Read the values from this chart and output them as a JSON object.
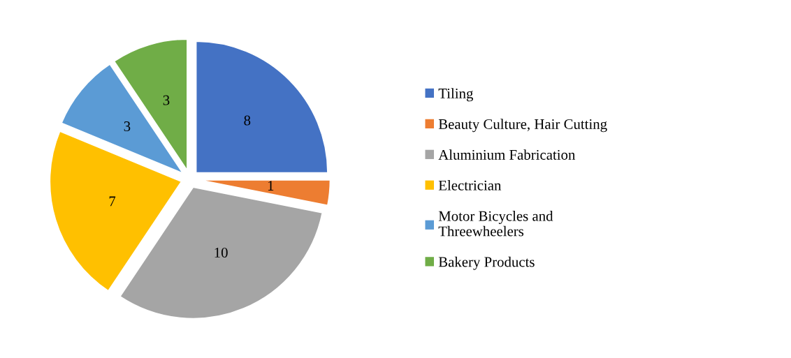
{
  "chart_data": {
    "type": "pie",
    "categories": [
      "Tiling",
      "Beauty Culture, Hair Cutting",
      "Aluminium Fabrication",
      "Electrician",
      "Motor Bicycles and\nThreewheelers",
      "Bakery Products"
    ],
    "values": [
      8,
      1,
      10,
      7,
      3,
      3
    ],
    "colors": [
      "#4472c4",
      "#ed7d31",
      "#a5a5a5",
      "#ffc000",
      "#5b9bd5",
      "#70ad47"
    ],
    "data_labels": true,
    "legend": "right"
  }
}
